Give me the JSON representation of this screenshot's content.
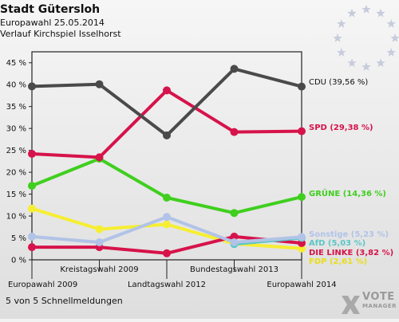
{
  "header": {
    "title": "Stadt Gütersloh",
    "subtitle": "Europawahl 25.05.2014",
    "subtitle2": "Verlauf Kirchspiel Isselhorst"
  },
  "footer": {
    "note": "5 von 5 Schnellmeldungen"
  },
  "logo": {
    "word": "VOTE",
    "sub": "MANAGER",
    "icon": "vote-manager-x-logo"
  },
  "emblem": {
    "icon": "eu-stars-icon",
    "color": "#c7ccdc"
  },
  "chart_data": {
    "type": "line",
    "categories": [
      "Europawahl 2009",
      "Kreistagswahl 2009",
      "Landtagswahl 2012",
      "Bundestagswahl 2013",
      "Europawahl 2014"
    ],
    "x_label_rows": [
      "bottom",
      "top",
      "bottom",
      "top",
      "bottom"
    ],
    "ylim": [
      0,
      47.5
    ],
    "yticks": [
      0,
      5,
      10,
      15,
      20,
      25,
      30,
      35,
      40,
      45
    ],
    "ytick_labels": [
      "0 %",
      "5 %",
      "10 %",
      "15 %",
      "20 %",
      "25 %",
      "30 %",
      "35 %",
      "40 %",
      "45 %"
    ],
    "grid": false,
    "series": [
      {
        "name": "CDU",
        "color": "#4a4a4a",
        "values": [
          39.6,
          40.1,
          28.4,
          43.6,
          39.56
        ],
        "label": "CDU (39,56 %)",
        "label_color": "#111111"
      },
      {
        "name": "SPD",
        "color": "#d6134a",
        "values": [
          24.2,
          23.4,
          38.7,
          29.2,
          29.38
        ],
        "label": "SPD (29,38 %)",
        "label_color": "#d6134a"
      },
      {
        "name": "GRÜNE",
        "color": "#3fcf1e",
        "values": [
          16.9,
          23.1,
          14.2,
          10.7,
          14.36
        ],
        "label": "GRÜNE (14,36 %)",
        "label_color": "#3fcf1e"
      },
      {
        "name": "Sonstige",
        "color": "#b1c3e6",
        "values": [
          5.3,
          4.0,
          9.8,
          4.0,
          5.23
        ],
        "label": "Sonstige (5,23 %)",
        "label_color": "#b1c3e6"
      },
      {
        "name": "AfD",
        "color": "#5cc6c6",
        "values": [
          null,
          null,
          null,
          3.6,
          5.03
        ],
        "label": "AfD (5,03 %)",
        "label_color": "#5cc6c6"
      },
      {
        "name": "DIE LINKE",
        "color": "#d6134a",
        "values": [
          2.9,
          2.9,
          1.5,
          5.3,
          3.82
        ],
        "label": "DIE LINKE (3,82 %)",
        "label_color": "#d6134a"
      },
      {
        "name": "FDP",
        "color": "#f6ee32",
        "values": [
          11.7,
          7.0,
          8.1,
          3.7,
          2.61
        ],
        "label": "FDP (2,61 %)",
        "label_color": "#e9dd17"
      }
    ]
  }
}
